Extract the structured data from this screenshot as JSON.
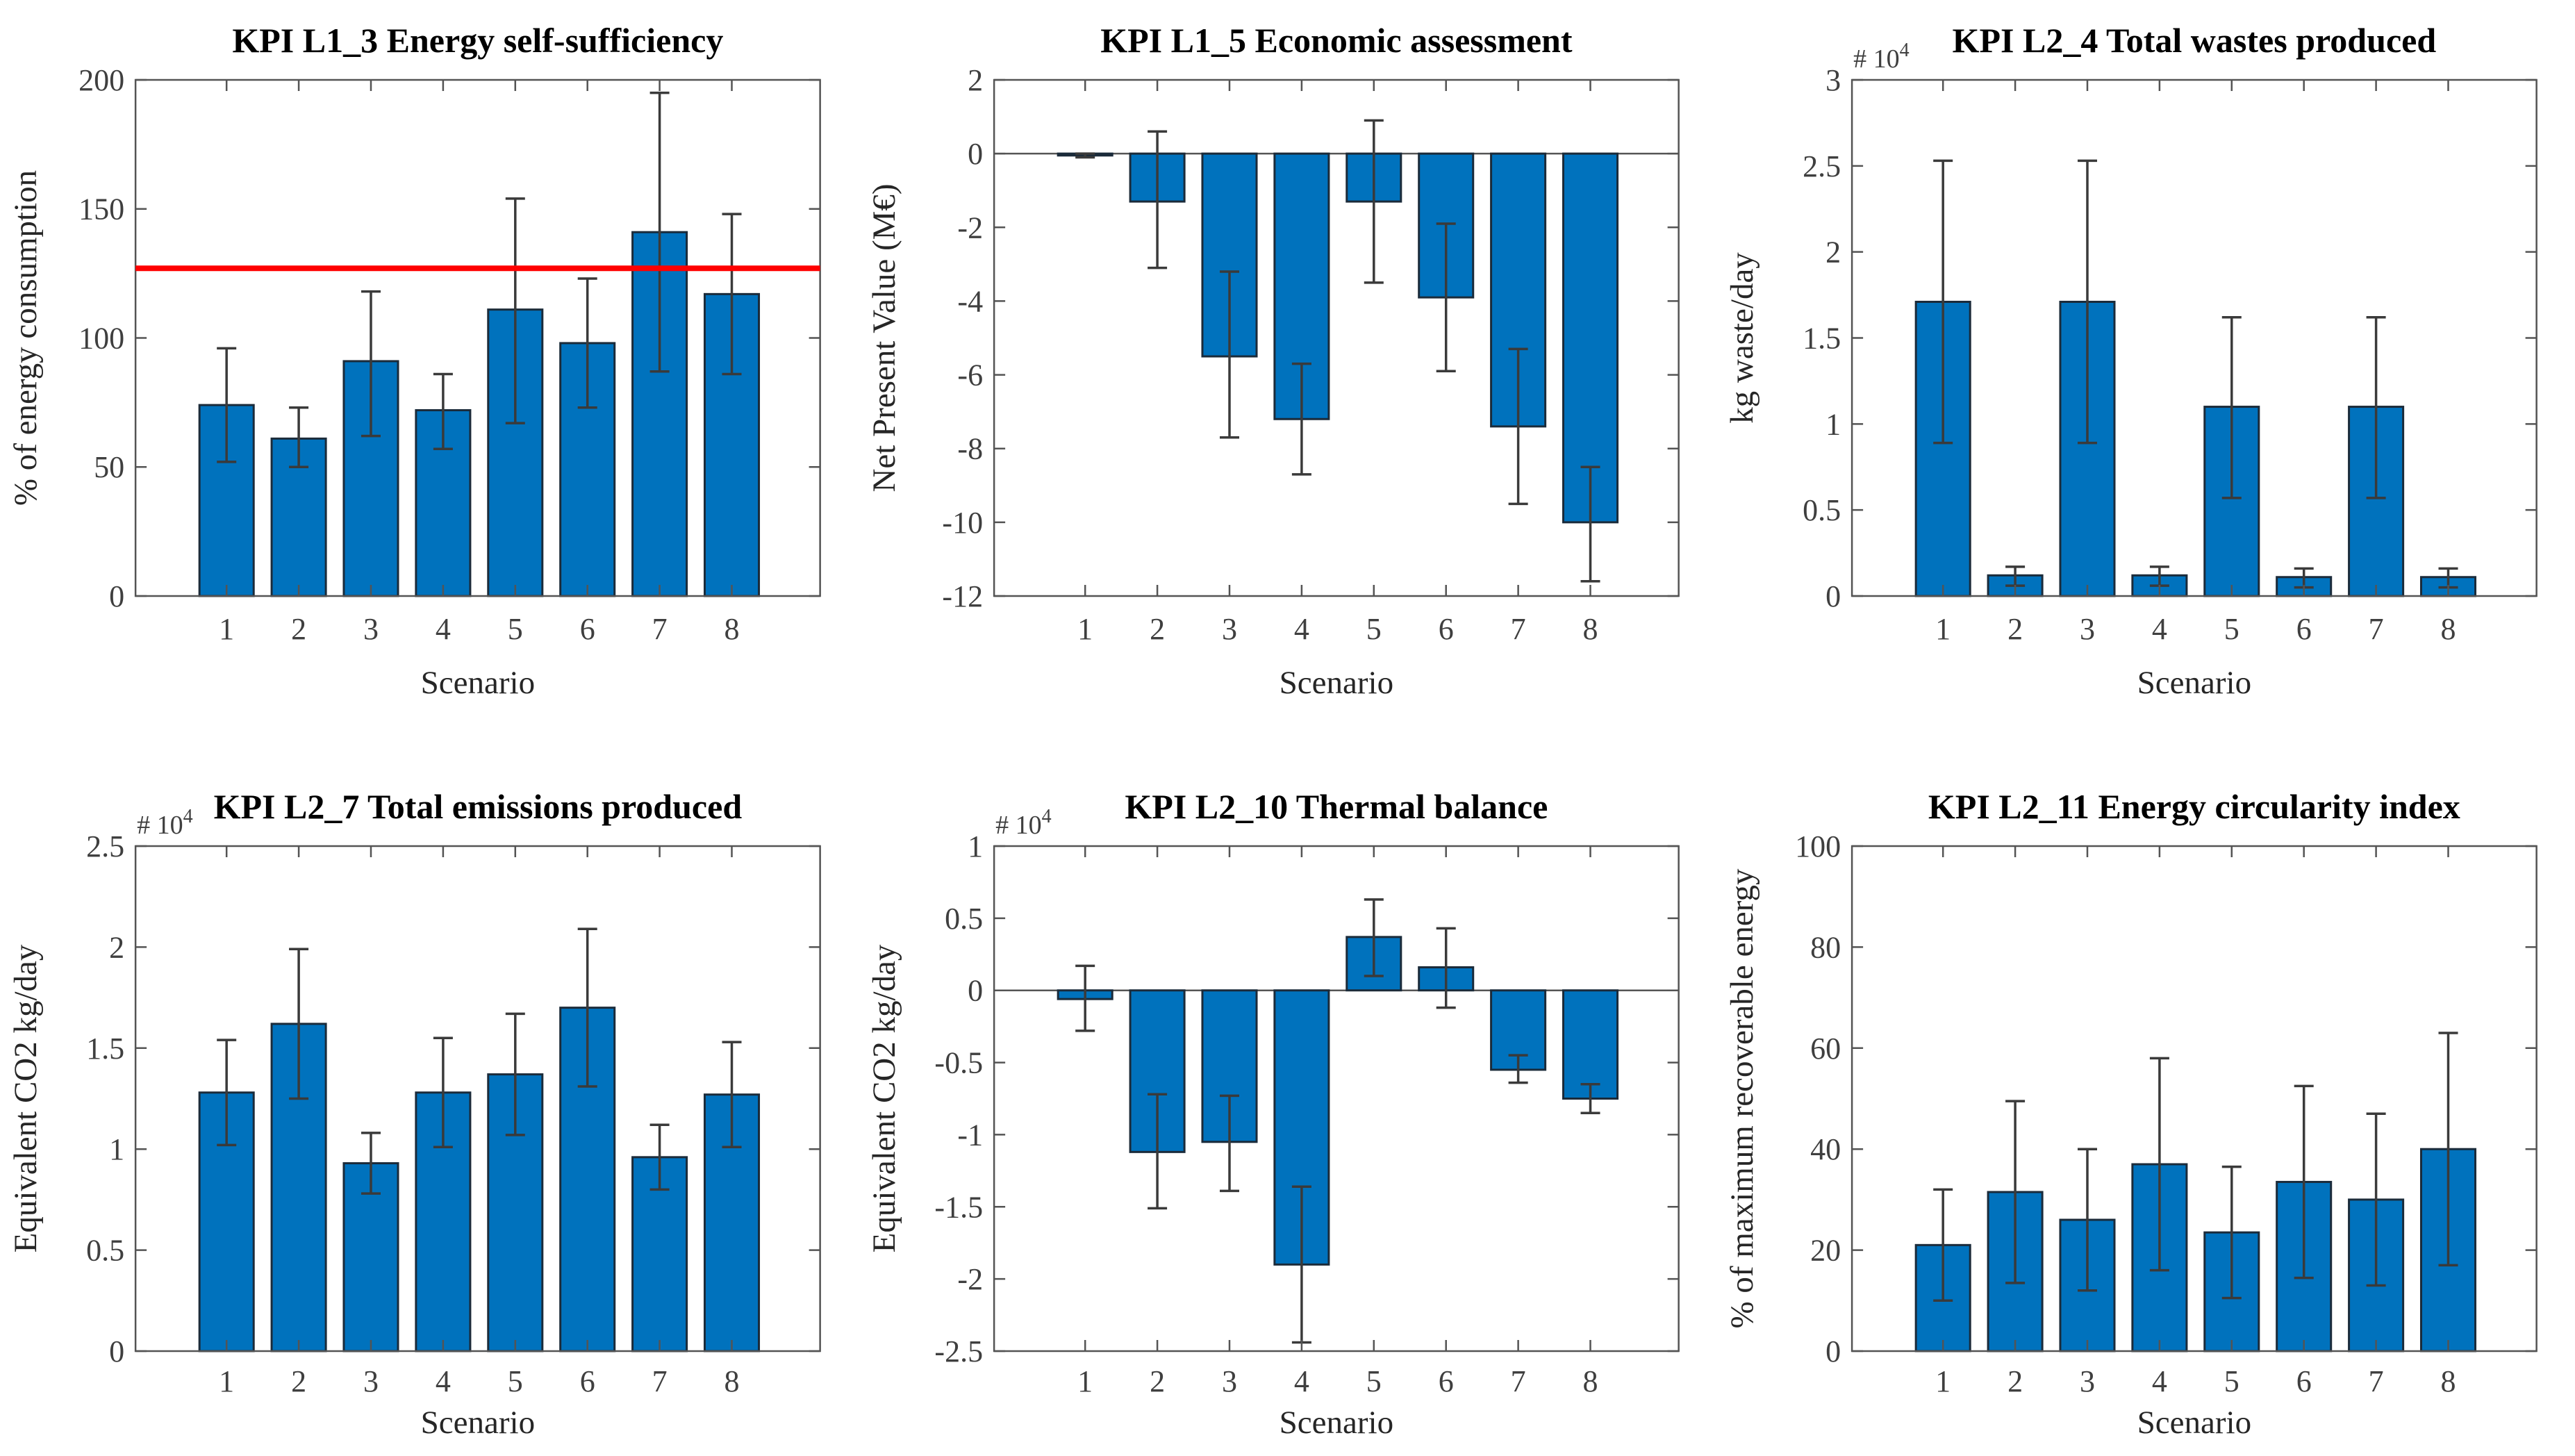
{
  "figure": {
    "background": "#ffffff",
    "layout": "2 rows x 3 columns of bar charts with error bars"
  },
  "style": {
    "bar_fill": "#0072BD",
    "bar_edge": "#1b2b3a",
    "error_color": "#3a3a3a",
    "axis_color": "#545454",
    "tick_label_color": "#3f3f3f",
    "label_color": "#262626",
    "title_color": "#000000",
    "ref_line_color": "#ff0000",
    "zero_line_color": "#555555"
  },
  "chart_data": [
    {
      "type": "bar",
      "title": "KPI L1_3 Energy self-sufficiency",
      "xlabel": "Scenario",
      "ylabel": "% of energy consumption",
      "categories": [
        "1",
        "2",
        "3",
        "4",
        "5",
        "6",
        "7",
        "8"
      ],
      "values": [
        74,
        61,
        91,
        72,
        111,
        98,
        141,
        117
      ],
      "error_low": [
        52,
        50,
        62,
        57,
        67,
        73,
        87,
        86
      ],
      "error_high": [
        96,
        73,
        118,
        86,
        154,
        123,
        195,
        148
      ],
      "ylim": [
        0,
        200
      ],
      "yticks": [
        0,
        50,
        100,
        150,
        200
      ],
      "ytick_labels": [
        "0",
        "50",
        "100",
        "150",
        "200"
      ],
      "ref_line": 127,
      "zero_line": false,
      "multiplier_base": null,
      "multiplier_exp": null,
      "grid": false,
      "legend": null
    },
    {
      "type": "bar",
      "title": "KPI L1_5 Economic assessment",
      "xlabel": "Scenario",
      "ylabel": "Net Present Value (M€)",
      "categories": [
        "1",
        "2",
        "3",
        "4",
        "5",
        "6",
        "7",
        "8"
      ],
      "values": [
        -0.05,
        -1.3,
        -5.5,
        -7.2,
        -1.3,
        -3.9,
        -7.4,
        -10.0
      ],
      "error_low": [
        -0.1,
        -3.1,
        -7.7,
        -8.7,
        -3.5,
        -5.9,
        -9.5,
        -11.6
      ],
      "error_high": [
        0.0,
        0.6,
        -3.2,
        -5.7,
        0.9,
        -1.9,
        -5.3,
        -8.5
      ],
      "ylim": [
        -12,
        2
      ],
      "yticks": [
        -12,
        -10,
        -8,
        -6,
        -4,
        -2,
        0,
        2
      ],
      "ytick_labels": [
        "-12",
        "-10",
        "-8",
        "-6",
        "-4",
        "-2",
        "0",
        "2"
      ],
      "ref_line": null,
      "zero_line": true,
      "multiplier_base": null,
      "multiplier_exp": null,
      "grid": false,
      "legend": null
    },
    {
      "type": "bar",
      "title": "KPI L2_4 Total wastes produced",
      "xlabel": "Scenario",
      "ylabel": "kg waste/day",
      "categories": [
        "1",
        "2",
        "3",
        "4",
        "5",
        "6",
        "7",
        "8"
      ],
      "values": [
        1.71,
        0.12,
        1.71,
        0.12,
        1.1,
        0.11,
        1.1,
        0.11
      ],
      "error_low": [
        0.89,
        0.06,
        0.89,
        0.06,
        0.57,
        0.05,
        0.57,
        0.05
      ],
      "error_high": [
        2.53,
        0.17,
        2.53,
        0.17,
        1.62,
        0.16,
        1.62,
        0.16
      ],
      "ylim": [
        0,
        3
      ],
      "yticks": [
        0,
        0.5,
        1,
        1.5,
        2,
        2.5,
        3
      ],
      "ytick_labels": [
        "0",
        "0.5",
        "1",
        "1.5",
        "2",
        "2.5",
        "3"
      ],
      "ref_line": null,
      "zero_line": false,
      "multiplier_base": "# 10",
      "multiplier_exp": "4",
      "grid": false,
      "legend": null
    },
    {
      "type": "bar",
      "title": "KPI L2_7 Total emissions produced",
      "xlabel": "Scenario",
      "ylabel": "Equivalent CO2 kg/day",
      "categories": [
        "1",
        "2",
        "3",
        "4",
        "5",
        "6",
        "7",
        "8"
      ],
      "values": [
        1.28,
        1.62,
        0.93,
        1.28,
        1.37,
        1.7,
        0.96,
        1.27
      ],
      "error_low": [
        1.02,
        1.25,
        0.78,
        1.01,
        1.07,
        1.31,
        0.8,
        1.01
      ],
      "error_high": [
        1.54,
        1.99,
        1.08,
        1.55,
        1.67,
        2.09,
        1.12,
        1.53
      ],
      "ylim": [
        0,
        2.5
      ],
      "yticks": [
        0,
        0.5,
        1,
        1.5,
        2,
        2.5
      ],
      "ytick_labels": [
        "0",
        "0.5",
        "1",
        "1.5",
        "2",
        "2.5"
      ],
      "ref_line": null,
      "zero_line": false,
      "multiplier_base": "# 10",
      "multiplier_exp": "4",
      "grid": false,
      "legend": null
    },
    {
      "type": "bar",
      "title": "KPI L2_10 Thermal balance",
      "xlabel": "Scenario",
      "ylabel": "Equivalent CO2 kg/day",
      "categories": [
        "1",
        "2",
        "3",
        "4",
        "5",
        "6",
        "7",
        "8"
      ],
      "values": [
        -0.06,
        -1.12,
        -1.05,
        -1.9,
        0.37,
        0.16,
        -0.55,
        -0.75
      ],
      "error_low": [
        -0.28,
        -1.51,
        -1.39,
        -2.44,
        0.1,
        -0.12,
        -0.64,
        -0.85
      ],
      "error_high": [
        0.17,
        -0.72,
        -0.73,
        -1.36,
        0.63,
        0.43,
        -0.45,
        -0.65
      ],
      "ylim": [
        -2.5,
        1
      ],
      "yticks": [
        -2.5,
        -2,
        -1.5,
        -1,
        -0.5,
        0,
        0.5,
        1
      ],
      "ytick_labels": [
        "-2.5",
        "-2",
        "-1.5",
        "-1",
        "-0.5",
        "0",
        "0.5",
        "1"
      ],
      "ref_line": null,
      "zero_line": true,
      "multiplier_base": "# 10",
      "multiplier_exp": "4",
      "grid": false,
      "legend": null
    },
    {
      "type": "bar",
      "title": "KPI L2_11 Energy circularity index",
      "xlabel": "Scenario",
      "ylabel": "% of maximum recoverable energy",
      "categories": [
        "1",
        "2",
        "3",
        "4",
        "5",
        "6",
        "7",
        "8"
      ],
      "values": [
        21,
        31.5,
        26,
        37,
        23.5,
        33.5,
        30,
        40
      ],
      "error_low": [
        10,
        13.5,
        12,
        16,
        10.5,
        14.5,
        13,
        17
      ],
      "error_high": [
        32,
        49.5,
        40,
        58,
        36.5,
        52.5,
        47,
        63
      ],
      "ylim": [
        0,
        100
      ],
      "yticks": [
        0,
        20,
        40,
        60,
        80,
        100
      ],
      "ytick_labels": [
        "0",
        "20",
        "40",
        "60",
        "80",
        "100"
      ],
      "ref_line": null,
      "zero_line": false,
      "multiplier_base": null,
      "multiplier_exp": null,
      "grid": false,
      "legend": null
    }
  ]
}
